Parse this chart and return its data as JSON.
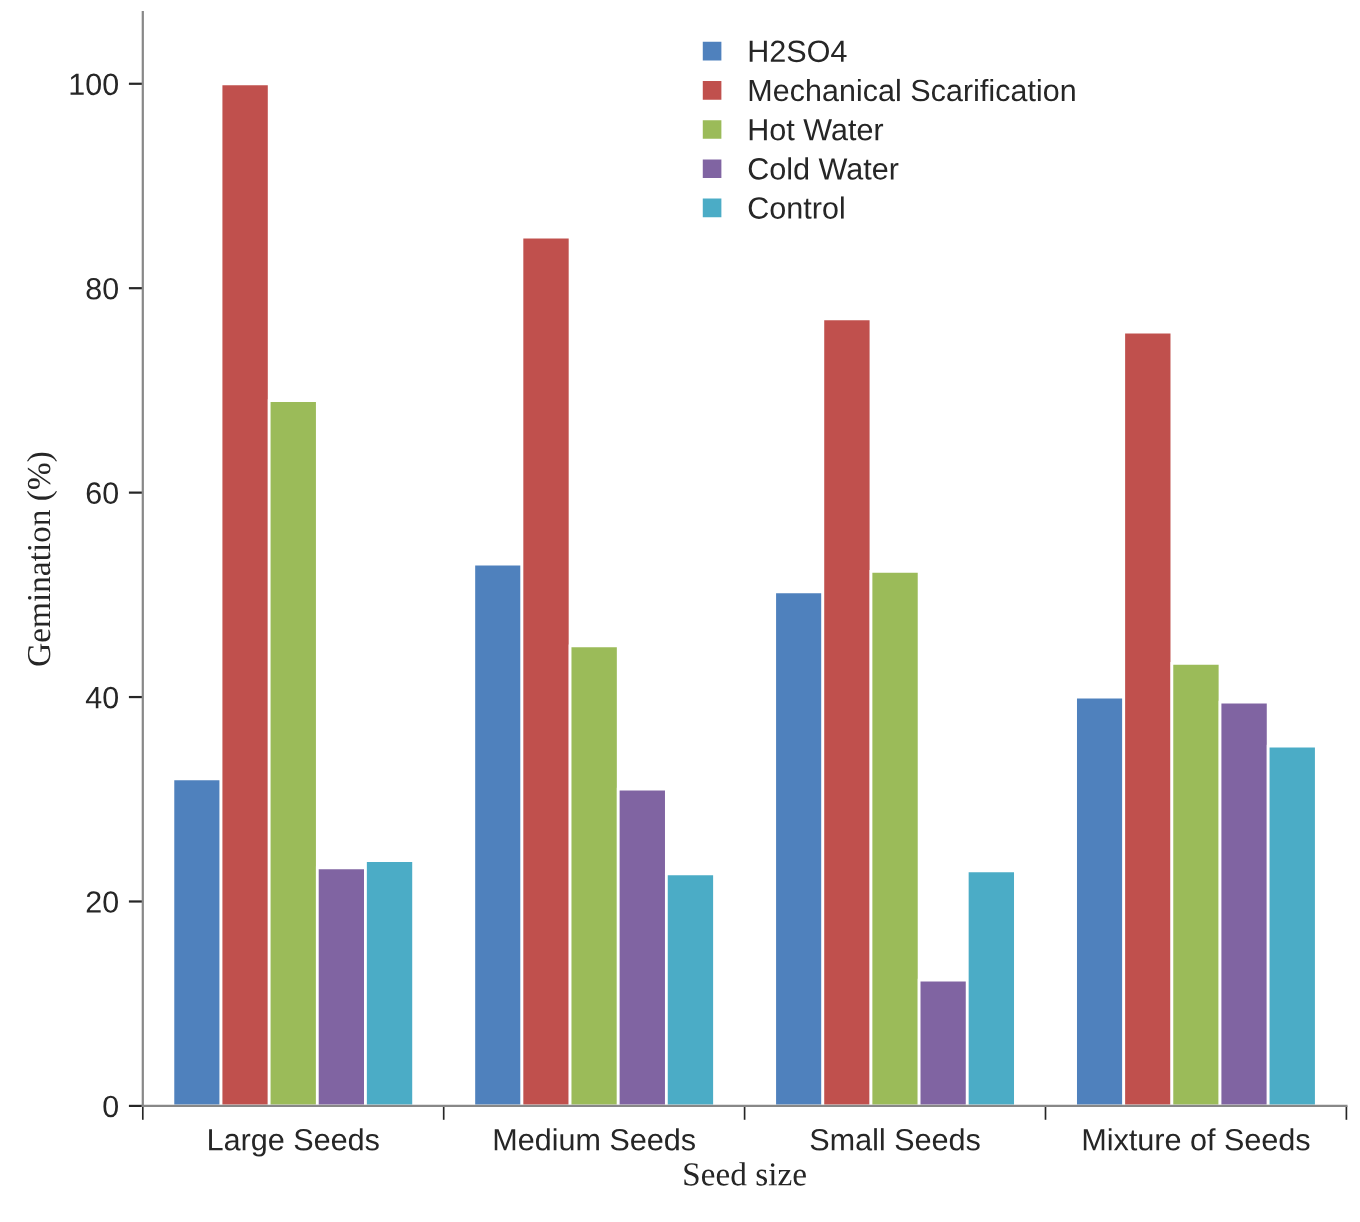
{
  "chart_data": {
    "type": "bar",
    "xlabel": "Seed size",
    "ylabel": "Gemination (%)",
    "categories": [
      "Large Seeds",
      "Medium Seeds",
      "Small Seeds",
      "Mixture of Seeds"
    ],
    "series": [
      {
        "name": "H2SO4",
        "color": "#4f81bd",
        "values": [
          32,
          53,
          50.3,
          40
        ]
      },
      {
        "name": "Mechanical Scarification",
        "color": "#c0504d",
        "values": [
          100,
          85,
          77,
          75.7
        ]
      },
      {
        "name": "Hot Water",
        "color": "#9bbb59",
        "values": [
          69,
          45,
          52.3,
          43.3
        ]
      },
      {
        "name": "Cold Water",
        "color": "#8064a2",
        "values": [
          23.3,
          31,
          12.3,
          39.5
        ]
      },
      {
        "name": "Control",
        "color": "#4bacc6",
        "values": [
          24,
          22.7,
          23,
          35.2
        ]
      }
    ],
    "ylim": [
      0,
      107
    ],
    "yticks": [
      0,
      20,
      40,
      60,
      80,
      100
    ],
    "grid": false,
    "legend": "top"
  }
}
